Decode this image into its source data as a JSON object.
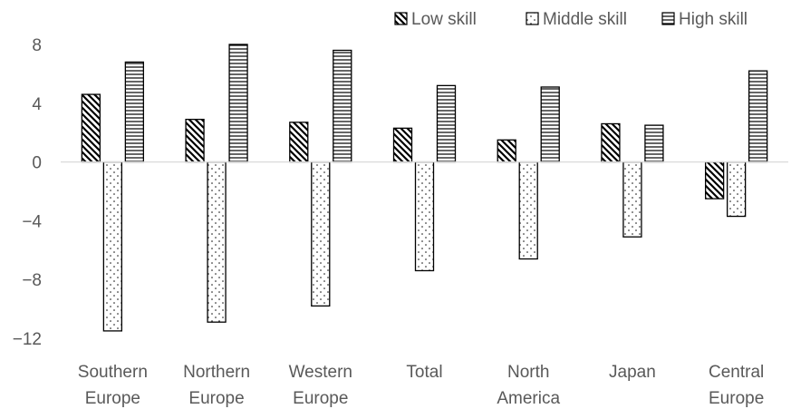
{
  "chart_data": {
    "type": "bar",
    "title": "",
    "xlabel": "",
    "ylabel": "",
    "categories": [
      [
        "Southern",
        "Europe"
      ],
      [
        "Northern",
        "Europe"
      ],
      [
        "Western",
        "Europe"
      ],
      [
        "Total"
      ],
      [
        "North",
        "America"
      ],
      [
        "Japan"
      ],
      [
        "Central",
        "Europe"
      ]
    ],
    "series": [
      {
        "name": "Low skill",
        "pattern": "diagonal",
        "values": [
          4.6,
          2.9,
          2.7,
          2.3,
          1.5,
          2.6,
          -2.5
        ]
      },
      {
        "name": "Middle skill",
        "pattern": "dots",
        "values": [
          -11.5,
          -10.9,
          -9.8,
          -7.4,
          -6.6,
          -5.1,
          -3.7
        ]
      },
      {
        "name": "High skill",
        "pattern": "horizontal",
        "values": [
          6.8,
          8.0,
          7.6,
          5.2,
          5.1,
          2.5,
          6.2
        ]
      }
    ],
    "ylim": [
      -12,
      8
    ],
    "yticks": [
      8,
      4,
      0,
      -4,
      -8,
      -12
    ],
    "ytick_labels": [
      "8",
      "4",
      "0",
      "−4",
      "−8",
      "−12"
    ],
    "grid": false,
    "legend": "top-right",
    "colors": {
      "text": "#595959",
      "bar_edge": "#000000",
      "axis": "#d9d9d9",
      "fill": "#ffffff"
    }
  }
}
